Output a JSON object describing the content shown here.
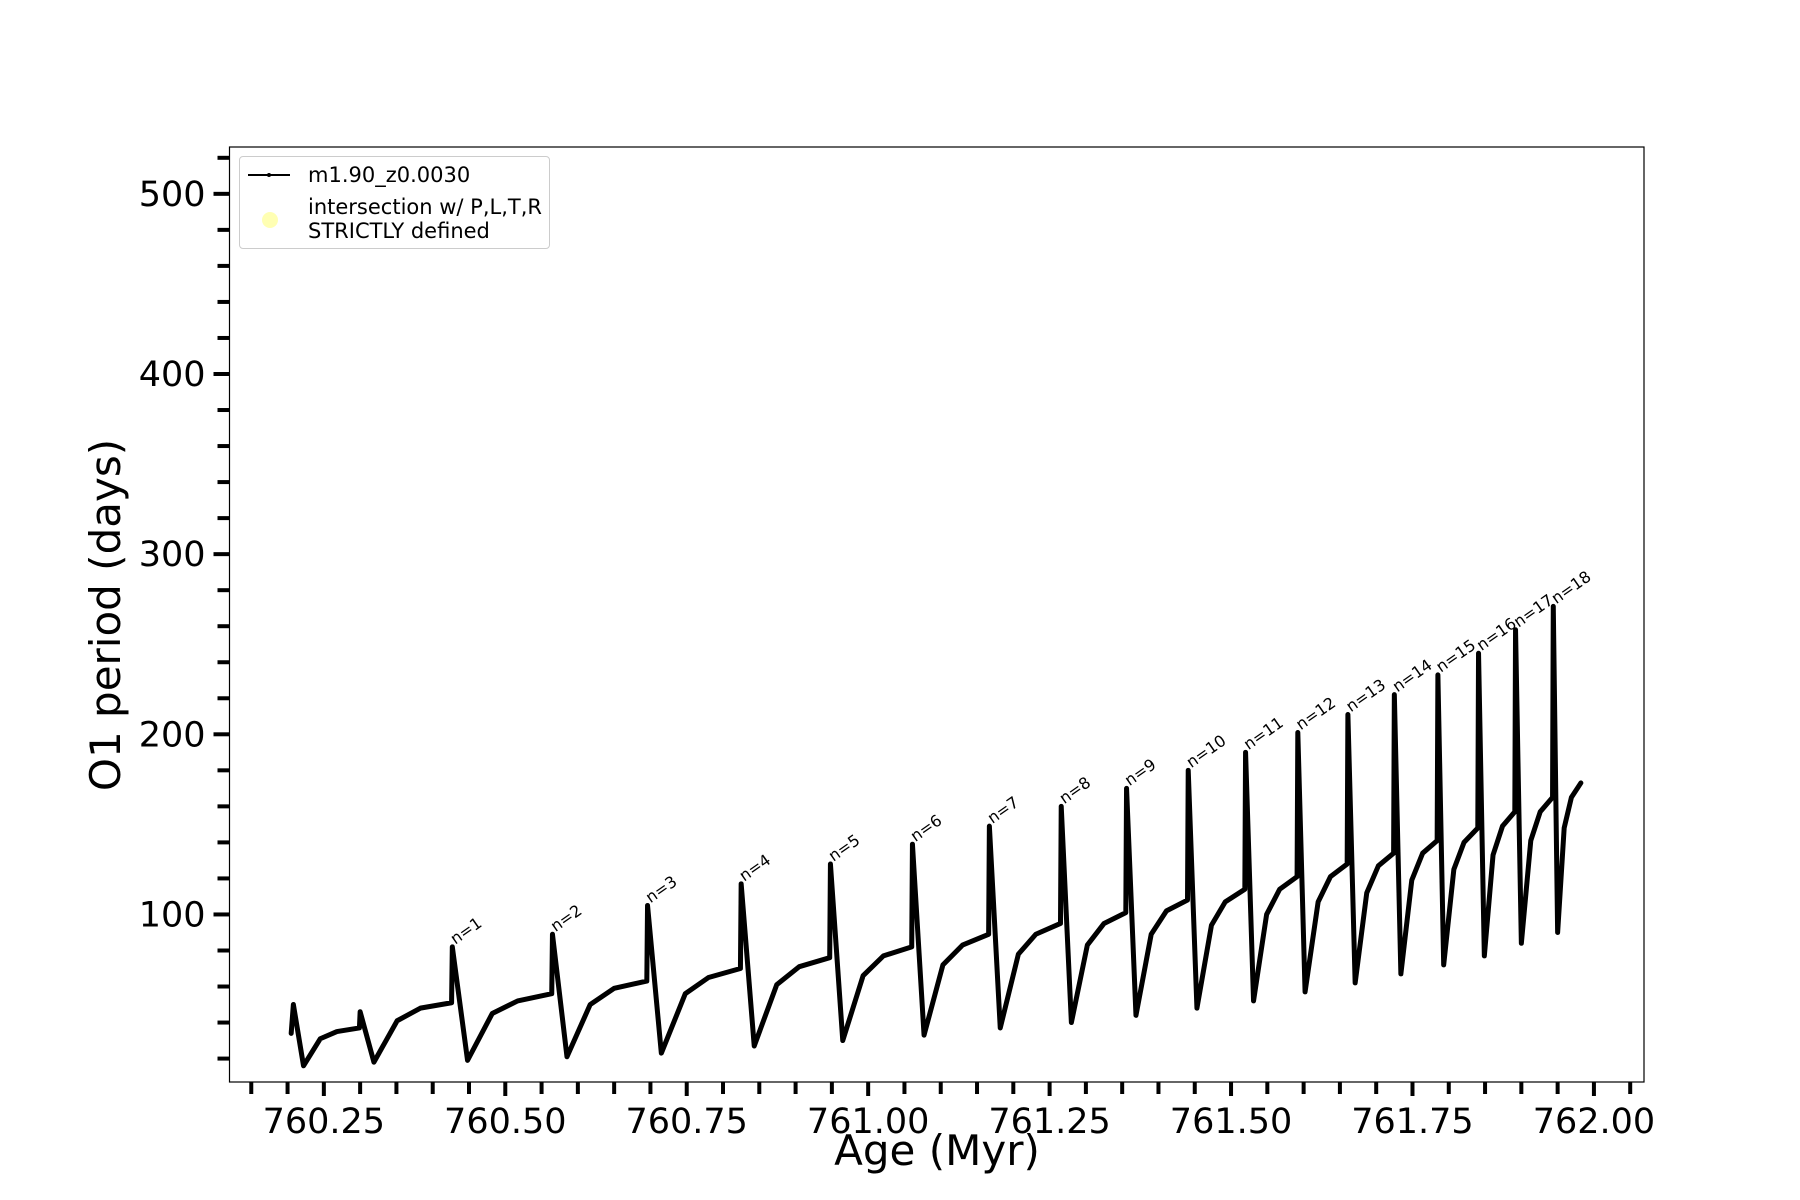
{
  "chart_data": {
    "type": "line",
    "xlabel": "Age (Myr)",
    "ylabel": "O1 period (days)",
    "xlim": [
      760.12,
      762.069
    ],
    "ylim": [
      7,
      526
    ],
    "xticks": [
      760.25,
      {
        "value": 760.5,
        "label": "760.50"
      },
      760.75,
      {
        "value": 761,
        "label": "761.00"
      },
      761.25,
      {
        "value": 761.5,
        "label": "761.50"
      },
      761.75,
      {
        "value": 762,
        "label": "762.00"
      }
    ],
    "xminorticks": [
      760.15,
      760.2,
      760.3,
      760.35,
      760.4,
      760.45,
      760.55,
      760.6,
      760.65,
      760.7,
      760.8,
      760.85,
      760.9,
      760.95,
      761.05,
      761.1,
      761.15,
      761.2,
      761.3,
      761.35,
      761.4,
      761.45,
      761.55,
      761.6,
      761.65,
      761.7,
      761.8,
      761.85,
      761.9,
      761.95,
      762.05
    ],
    "yticks": [
      100,
      200,
      300,
      400,
      500
    ],
    "yminorticks": [
      20,
      40,
      60,
      80,
      120,
      140,
      160,
      180,
      220,
      240,
      260,
      280,
      320,
      340,
      360,
      380,
      420,
      440,
      460,
      480,
      520
    ],
    "legend": "upper left",
    "x": [
      760.205,
      760.208,
      760.222,
      760.245,
      760.268,
      760.299,
      760.3,
      760.319,
      760.351,
      760.383,
      760.426,
      760.427,
      760.448,
      760.482,
      760.517,
      760.564,
      760.565,
      760.585,
      760.617,
      760.65,
      760.695,
      760.696,
      760.715,
      760.748,
      760.78,
      760.824,
      760.825,
      760.843,
      760.874,
      760.905,
      760.947,
      760.948,
      760.965,
      760.993,
      761.021,
      761.06,
      761.061,
      761.077,
      761.103,
      761.13,
      761.166,
      761.167,
      761.182,
      761.207,
      761.231,
      761.265,
      761.266,
      761.28,
      761.302,
      761.325,
      761.355,
      761.356,
      761.369,
      761.39,
      761.411,
      761.44,
      761.441,
      761.453,
      761.473,
      761.492,
      761.519,
      761.52,
      761.531,
      761.549,
      761.567,
      761.591,
      761.592,
      761.602,
      761.62,
      761.637,
      761.66,
      761.661,
      761.671,
      761.687,
      761.703,
      761.724,
      761.725,
      761.734,
      761.749,
      761.764,
      761.784,
      761.785,
      761.793,
      761.807,
      761.821,
      761.84,
      761.841,
      761.849,
      761.861,
      761.874,
      761.891,
      761.892,
      761.9,
      761.913,
      761.926,
      761.943,
      761.944,
      761.95,
      761.959,
      761.969,
      761.982
    ],
    "series": [
      {
        "name": "m1.90_z0.0030",
        "color": "#000000",
        "values": [
          34,
          50,
          16,
          31,
          35,
          37,
          46,
          18,
          41,
          48,
          51,
          82,
          19,
          45,
          52,
          56,
          89,
          21,
          50,
          59,
          63,
          105,
          23,
          56,
          65,
          70,
          117,
          27,
          61,
          71,
          76,
          128,
          30,
          66,
          77,
          82,
          139,
          33,
          72,
          83,
          89,
          149,
          37,
          78,
          89,
          95,
          160,
          40,
          83,
          95,
          101,
          170,
          44,
          89,
          102,
          108,
          180,
          48,
          94,
          107,
          114,
          190,
          52,
          100,
          114,
          121,
          201,
          57,
          107,
          121,
          128,
          211,
          62,
          112,
          127,
          134,
          222,
          67,
          119,
          134,
          141,
          233,
          72,
          125,
          140,
          148,
          245,
          77,
          133,
          149,
          157,
          258,
          84,
          141,
          157,
          165,
          271,
          90,
          148,
          165,
          173
        ]
      },
      {
        "name": "intersection w/ P,L,T,R\nSTRICTLY defined",
        "color": "#ffffb3",
        "type": "scatter",
        "x": [],
        "values": []
      }
    ],
    "annotations": [
      {
        "text": "n=1",
        "x": 760.427,
        "y": 82
      },
      {
        "text": "n=2",
        "x": 760.565,
        "y": 89
      },
      {
        "text": "n=3",
        "x": 760.696,
        "y": 105
      },
      {
        "text": "n=4",
        "x": 760.825,
        "y": 117
      },
      {
        "text": "n=5",
        "x": 760.948,
        "y": 128
      },
      {
        "text": "n=6",
        "x": 761.061,
        "y": 139
      },
      {
        "text": "n=7",
        "x": 761.167,
        "y": 149
      },
      {
        "text": "n=8",
        "x": 761.266,
        "y": 160
      },
      {
        "text": "n=9",
        "x": 761.356,
        "y": 170
      },
      {
        "text": "n=10",
        "x": 761.441,
        "y": 180
      },
      {
        "text": "n=11",
        "x": 761.52,
        "y": 190
      },
      {
        "text": "n=12",
        "x": 761.592,
        "y": 201
      },
      {
        "text": "n=13",
        "x": 761.661,
        "y": 211
      },
      {
        "text": "n=14",
        "x": 761.725,
        "y": 222
      },
      {
        "text": "n=15",
        "x": 761.785,
        "y": 233
      },
      {
        "text": "n=16",
        "x": 761.841,
        "y": 245
      },
      {
        "text": "n=17",
        "x": 761.892,
        "y": 258
      },
      {
        "text": "n=18",
        "x": 761.944,
        "y": 271
      }
    ]
  }
}
